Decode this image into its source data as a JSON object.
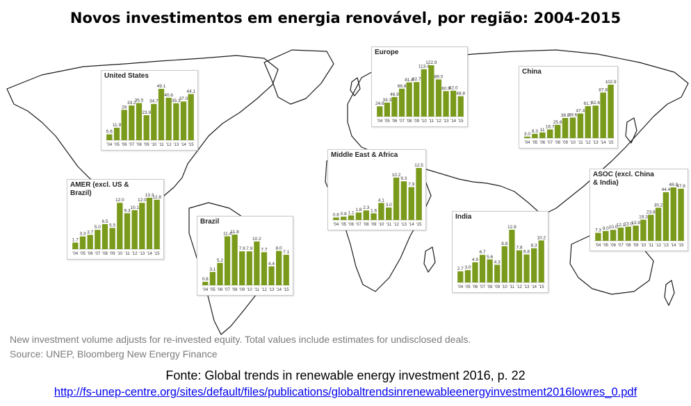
{
  "title": "Novos investimentos em energia renovável, por região: 2004-2015",
  "footnote": "New investment volume adjusts for re-invested equity.  Total values include estimates for undisclosed deals.",
  "source": "Source: UNEP, Bloomberg New Energy Finance",
  "fonte": "Fonte: Global trends in renewable energy investment 2016, p. 22",
  "link": "http://fs-unep-centre.org/sites/default/files/publications/globaltrendsinrenewableenergyinvestment2016lowres_0.pdf",
  "colors": {
    "bar": "#7a9a1c",
    "panel_border": "#c8c8c8",
    "map_stroke": "#1a1a1a"
  },
  "chart_data": [
    {
      "type": "bar",
      "id": "us",
      "title": "United States",
      "categories": [
        "'04",
        "'05",
        "'06",
        "'07",
        "'08",
        "'09",
        "'10",
        "'11",
        "'12",
        "'13",
        "'14",
        "'15"
      ],
      "values": [
        5.6,
        11.9,
        29.0,
        33.2,
        35.5,
        23.9,
        34.7,
        49.1,
        40.6,
        35.3,
        37.0,
        44.1
      ],
      "labels": [
        "5.6",
        "11.9",
        "29",
        "33.2",
        "35.5",
        "23.9",
        "34.7",
        "49.1",
        "40.6",
        "35.3",
        "37.0",
        "44.1"
      ]
    },
    {
      "type": "bar",
      "id": "europe",
      "title": "Europe",
      "categories": [
        "'04",
        "'05",
        "'06",
        "'07",
        "'08",
        "'09",
        "'10",
        "'11",
        "'12",
        "'13",
        "'14",
        "'15"
      ],
      "values": [
        24.6,
        33.3,
        46.9,
        66.8,
        81.8,
        82.7,
        113.4,
        122.9,
        89.0,
        60.9,
        62.0,
        48.8
      ],
      "labels": [
        "24.6",
        "33.3",
        "46.9",
        "66.8",
        "81.8",
        "82.7",
        "113.4",
        "122.9",
        "89.0",
        "60.9",
        "62.0",
        "48.8"
      ]
    },
    {
      "type": "bar",
      "id": "china",
      "title": "China",
      "categories": [
        "'04",
        "'05",
        "'06",
        "'07",
        "'08",
        "'09",
        "'10",
        "'11",
        "'12",
        "'13",
        "'14",
        "'15"
      ],
      "values": [
        3.0,
        8.3,
        11.0,
        16.7,
        25.6,
        38.8,
        39.6,
        47.4,
        61.7,
        62.6,
        87.8,
        102.9
      ],
      "labels": [
        "3.0",
        "8.3",
        "11",
        "16.7",
        "25.6",
        "38.8",
        "39.6",
        "47.4",
        "61.7",
        "62.6",
        "87.8",
        "102.9"
      ]
    },
    {
      "type": "bar",
      "id": "mea",
      "title": "Middle East & Africa",
      "categories": [
        "'04",
        "'05",
        "'06",
        "'07",
        "'08",
        "'09",
        "'10",
        "'11",
        "'12",
        "'13",
        "'14",
        "'15"
      ],
      "values": [
        0.6,
        0.8,
        1.1,
        1.8,
        2.3,
        1.6,
        4.1,
        3.0,
        10.2,
        9.3,
        7.9,
        12.5
      ],
      "labels": [
        "0.6",
        "0.8",
        "1.1",
        "1.8",
        "2.3",
        "1.6",
        "4.1",
        "3.0",
        "10.2",
        "9.3",
        "7.9",
        "12.5"
      ]
    },
    {
      "type": "bar",
      "id": "amer",
      "title": "AMER (excl. US &\nBrazil)",
      "categories": [
        "'04",
        "'05",
        "'06",
        "'07",
        "'08",
        "'09",
        "'10",
        "'11",
        "'12",
        "'13",
        "'14",
        "'15"
      ],
      "values": [
        1.7,
        3.3,
        3.7,
        5.0,
        6.5,
        5.5,
        12.0,
        9.3,
        10.1,
        12.0,
        13.3,
        12.8
      ],
      "labels": [
        "1.7",
        "3.3",
        "3.7",
        "5.0",
        "6.5",
        "5.5",
        "12.0",
        "9.3",
        "10.1",
        "12.0",
        "13.3",
        "12.8"
      ]
    },
    {
      "type": "bar",
      "id": "brazil",
      "title": "Brazil",
      "categories": [
        "'04",
        "'05",
        "'06",
        "'07",
        "'08",
        "'09",
        "'10",
        "'11",
        "'12",
        "'13",
        "'14",
        "'15"
      ],
      "values": [
        0.8,
        3.1,
        5.2,
        11.4,
        11.8,
        7.9,
        7.9,
        10.2,
        7.7,
        4.4,
        8.0,
        7.1
      ],
      "labels": [
        "0.8",
        "3.1",
        "5.2",
        "11.4",
        "11.8",
        "7.9",
        "7.9",
        "10.2",
        "7.7",
        "4.4",
        "8.0",
        "7.1"
      ]
    },
    {
      "type": "bar",
      "id": "india",
      "title": "India",
      "categories": [
        "'04",
        "'05",
        "'06",
        "'07",
        "'08",
        "'09",
        "'10",
        "'11",
        "'12",
        "'13",
        "'14",
        "'15"
      ],
      "values": [
        2.7,
        3.0,
        4.9,
        6.7,
        5.6,
        4.3,
        8.8,
        12.8,
        7.8,
        6.8,
        8.3,
        10.2
      ],
      "labels": [
        "2.7",
        "3.0",
        "4.9",
        "6.7",
        "5.6",
        "4.3",
        "8.8",
        "12.8",
        "7.8",
        "6.8",
        "8.3",
        "10.2"
      ]
    },
    {
      "type": "bar",
      "id": "asoc",
      "title": "ASOC (excl. China\n& India)",
      "categories": [
        "'04",
        "'05",
        "'06",
        "'07",
        "'08",
        "'09",
        "'10",
        "'11",
        "'12",
        "'13",
        "'14",
        "'15"
      ],
      "values": [
        7.3,
        9.0,
        10.0,
        12.1,
        13.0,
        13.9,
        19.3,
        23.8,
        30.2,
        44.4,
        48.8,
        47.6
      ],
      "labels": [
        "7.3",
        "9.0",
        "10.0",
        "12.1",
        "13.0",
        "13.9",
        "19.3",
        "23.8",
        "30.2",
        "44.4",
        "48.8",
        "47.6"
      ]
    }
  ]
}
